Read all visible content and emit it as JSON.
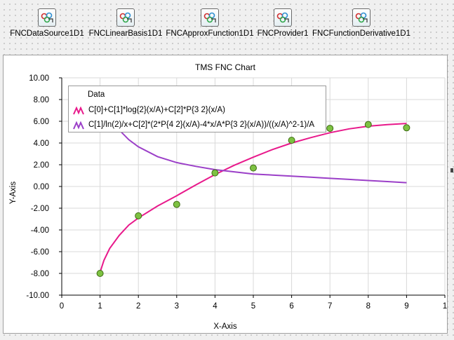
{
  "components": [
    {
      "label": "FNCDataSource1D1",
      "icon": "fnc-component-icon"
    },
    {
      "label": "FNCLinearBasis1D1",
      "icon": "fnc-component-icon"
    },
    {
      "label": "FNCApproxFunction1D1",
      "icon": "fnc-component-icon"
    },
    {
      "label": "FNCProvider1",
      "icon": "fnc-component-icon"
    },
    {
      "label": "FNCFunctionDerivative1D1",
      "icon": "fnc-component-icon"
    }
  ],
  "chart_data": {
    "type": "line",
    "title": "TMS FNC Chart",
    "xlabel": "X-Axis",
    "ylabel": "Y-Axis",
    "xlim": [
      0,
      10
    ],
    "ylim": [
      -10,
      10
    ],
    "x_ticks": [
      "0",
      "1",
      "2",
      "3",
      "4",
      "5",
      "6",
      "7",
      "8",
      "9",
      "1"
    ],
    "y_ticks": [
      "10.00",
      "8.00",
      "6.00",
      "4.00",
      "2.00",
      "0.00",
      "-2.00",
      "-4.00",
      "-6.00",
      "-8.00",
      "-10.00"
    ],
    "grid": true,
    "legend": {
      "title": "Data",
      "placement": "top-left",
      "entries": [
        "C[0]+C[1]*log{2}(x/A)+C[2]*P{3 2}(x/A)",
        "C[1]/ln(2)/x+C[2]*(2*P{4 2}(x/A)-4*x/A*P{3 2}(x/A))/((x/A)^2-1)/A"
      ]
    },
    "points": {
      "x": [
        1,
        2,
        3,
        4,
        5,
        6,
        7,
        8,
        9
      ],
      "y": [
        -8.0,
        -2.7,
        -1.65,
        1.25,
        1.7,
        4.25,
        5.35,
        5.7,
        5.4
      ],
      "color": "#7dc242"
    },
    "series": [
      {
        "color": "#e8198b",
        "x": [
          1.0,
          1.1,
          1.25,
          1.5,
          1.75,
          2.0,
          2.5,
          3.0,
          3.5,
          4.0,
          4.5,
          5.0,
          5.5,
          6.0,
          6.5,
          7.0,
          7.5,
          8.0,
          8.5,
          9.0
        ],
        "y": [
          -7.9,
          -6.8,
          -5.7,
          -4.5,
          -3.55,
          -2.9,
          -1.8,
          -0.85,
          0.15,
          1.1,
          1.95,
          2.7,
          3.4,
          4.0,
          4.5,
          4.95,
          5.3,
          5.55,
          5.7,
          5.8
        ]
      },
      {
        "color": "#9b3fc8",
        "x": [
          1.3,
          1.5,
          1.75,
          2.0,
          2.5,
          3.0,
          3.5,
          4.0,
          4.5,
          5.0,
          5.5,
          6.0,
          6.5,
          7.0,
          7.5,
          8.0,
          8.5,
          9.0
        ],
        "y": [
          6.2,
          5.2,
          4.3,
          3.65,
          2.75,
          2.2,
          1.85,
          1.55,
          1.35,
          1.15,
          1.05,
          0.95,
          0.85,
          0.75,
          0.65,
          0.55,
          0.45,
          0.35
        ]
      }
    ]
  }
}
